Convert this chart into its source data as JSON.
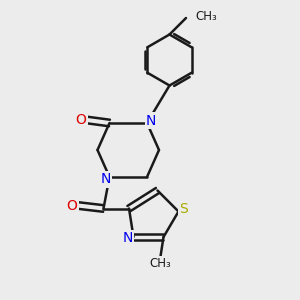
{
  "bg_color": "#ececec",
  "bond_color": "#1a1a1a",
  "N_color": "#0000ee",
  "O_color": "#dd0000",
  "S_color": "#aaaa00",
  "line_width": 1.8,
  "font_size": 10,
  "fig_w": 3.0,
  "fig_h": 3.0,
  "dpi": 100,
  "xlim": [
    0.0,
    1.0
  ],
  "ylim": [
    0.0,
    1.0
  ]
}
